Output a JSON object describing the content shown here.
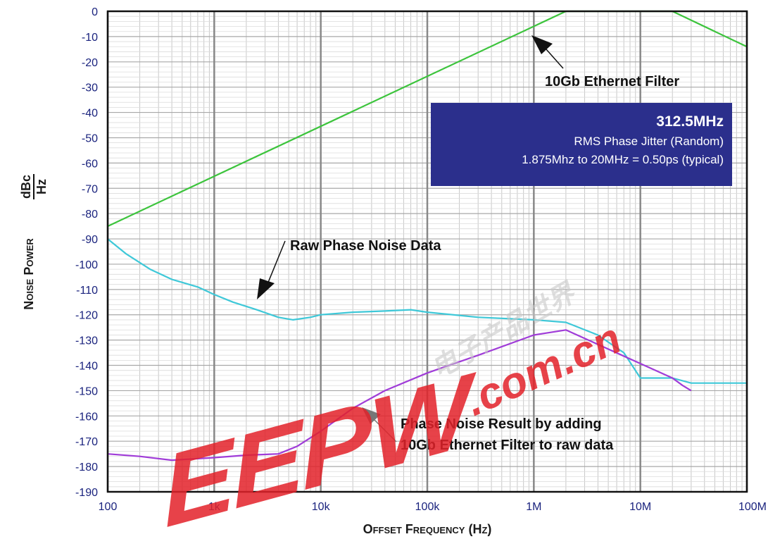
{
  "chart_data": {
    "type": "line",
    "xscale": "log",
    "xlim": [
      100,
      100000000
    ],
    "ylim": [
      -190,
      0
    ],
    "grid": true,
    "xlabel": "Offset Frequency (Hz)",
    "ylabel_main": "Noise Power",
    "ylabel_unit_num": "dBc",
    "ylabel_unit_den": "Hz",
    "x_ticks": [
      100,
      1000,
      10000,
      100000,
      1000000,
      10000000,
      100000000
    ],
    "x_tick_labels": [
      "100",
      "1k",
      "10k",
      "100k",
      "1M",
      "10M",
      "100M"
    ],
    "y_ticks": [
      0,
      -10,
      -20,
      -30,
      -40,
      -50,
      -60,
      -70,
      -80,
      -90,
      -100,
      -110,
      -120,
      -130,
      -140,
      -150,
      -160,
      -170,
      -180,
      -190
    ],
    "y_tick_labels": [
      "0",
      "-10",
      "-20",
      "-30",
      "-40",
      "-50",
      "-60",
      "-70",
      "-80",
      "-90",
      "-100",
      "-110",
      "-120",
      "-130",
      "-140",
      "-150",
      "-160",
      "-170",
      "-180",
      "-190"
    ],
    "series": [
      {
        "color": "#3cc43c",
        "x": [
          100,
          2000000,
          20000000,
          100000000
        ],
        "y": [
          -85,
          0,
          0,
          -14
        ]
      },
      {
        "color": "#3ec8d8",
        "x": [
          100,
          150,
          250,
          400,
          700,
          1000,
          1500,
          2500,
          4000,
          5500,
          8000,
          10000,
          20000,
          40000,
          70000,
          100000,
          300000,
          1000000,
          2000000,
          4000000,
          7000000,
          10000000,
          15000000,
          20000000,
          30000000,
          50000000,
          100000000
        ],
        "y": [
          -90,
          -96,
          -102,
          -106,
          -109,
          -112,
          -115,
          -118,
          -121,
          -122,
          -121,
          -120,
          -119,
          -118.5,
          -118,
          -119,
          -121,
          -122,
          -123,
          -128,
          -135,
          -145,
          -145,
          -145,
          -147,
          -147,
          -147
        ]
      },
      {
        "color": "#a03cd8",
        "x": [
          100,
          200,
          400,
          1000,
          2000,
          4000,
          6000,
          10000,
          20000,
          40000,
          100000,
          300000,
          1000000,
          2000000,
          20000000,
          25000000,
          30000000
        ],
        "y": [
          -175,
          -176,
          -177.5,
          -176.5,
          -175.5,
          -175,
          -172,
          -166,
          -157,
          -150,
          -143,
          -136,
          -128,
          -126,
          -145,
          -148,
          -150
        ]
      }
    ],
    "annotations": [
      {
        "text": "10Gb Ethernet Filter"
      },
      {
        "text": "Raw Phase Noise Data"
      },
      {
        "text": "Phase Noise Result by adding"
      },
      {
        "text": "10Gb Ethernet Filter to raw data"
      }
    ],
    "info_box": {
      "line1": "312.5MHz",
      "line2": "RMS Phase Jitter  (Random)",
      "line3": "1.875Mhz to 20MHz = 0.50ps (typical)"
    }
  },
  "watermark": {
    "text_main": "EEPW",
    "text_sub": ".com.cn",
    "text_cn": "电子产品世界"
  }
}
